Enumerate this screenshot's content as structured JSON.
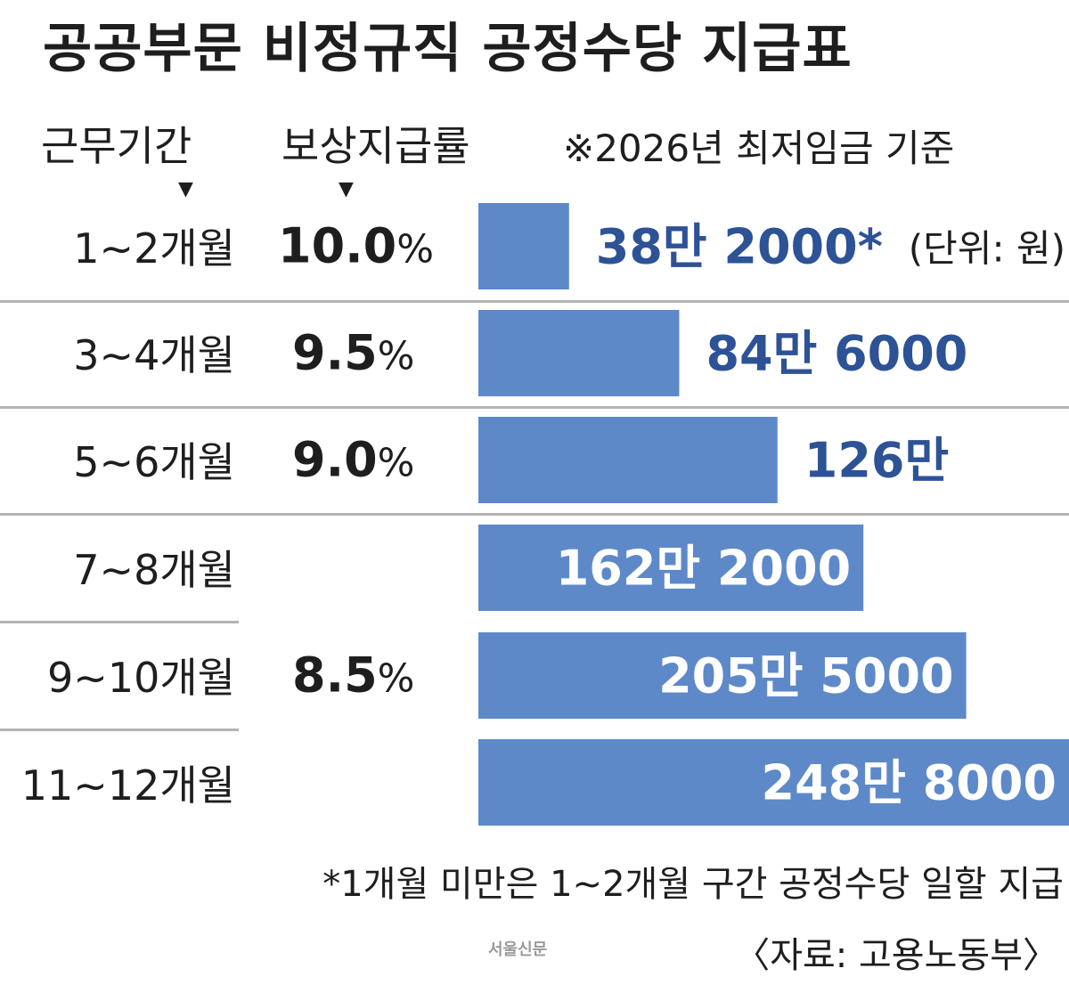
{
  "title": "공공부문 비정규직 공정수당 지급표",
  "headers": {
    "period": "근무기간",
    "rate": "보상지급률",
    "basis": "※2026년 최저임금 기준",
    "arrow": "▼"
  },
  "rates": [
    {
      "num": "10.0",
      "pct": "%"
    },
    {
      "num": "9.5",
      "pct": "%"
    },
    {
      "num": "9.0",
      "pct": "%"
    },
    {
      "num": "8.5",
      "pct": "%"
    }
  ],
  "unit_note": "(단위: 원)",
  "footnote": "*1개월 미만은 1~2개월 구간 공정수당 일할 지급",
  "source": "〈자료: 고용노동부〉",
  "logo": "서울신문",
  "colors": {
    "bar": "#5e89c9",
    "value_text": "#2d5296",
    "divider": "#b4b4b4"
  },
  "chart_data": {
    "type": "bar",
    "orientation": "horizontal",
    "title": "공공부문 비정규직 공정수당 지급표",
    "categories": [
      "1~2개월",
      "3~4개월",
      "5~6개월",
      "7~8개월",
      "9~10개월",
      "11~12개월"
    ],
    "values": [
      382000,
      846000,
      1260000,
      1622000,
      2055000,
      2488000
    ],
    "value_labels": [
      "38만 2000*",
      "84만 6000",
      "126만",
      "162만 2000",
      "205만 5000",
      "248만 8000"
    ],
    "rate_labels": [
      "10.0%",
      "9.5%",
      "9.0%",
      "8.5%",
      "8.5%",
      "8.5%"
    ],
    "unit": "원",
    "xlim": [
      0,
      2488000
    ]
  }
}
